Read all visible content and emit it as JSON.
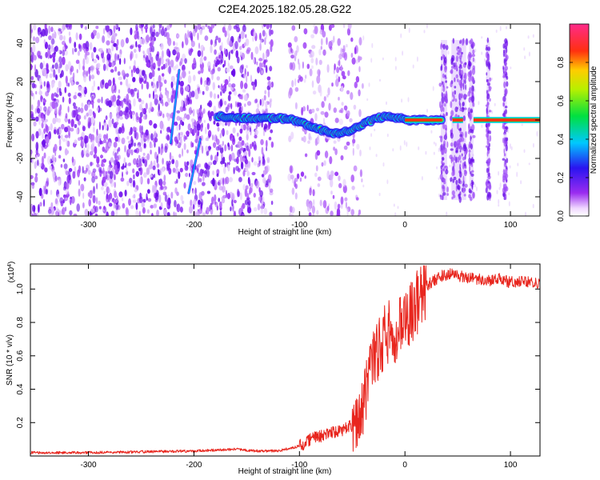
{
  "title": "C2E4.2025.182.05.28.G22",
  "colors": {
    "snr_line": "#e8261e",
    "axis": "#000000",
    "background": "#ffffff"
  },
  "chart_data": [
    {
      "type": "heatmap",
      "title": "C2E4.2025.182.05.28.G22",
      "xlabel": "Height of straight line (km)",
      "ylabel": "Frequency (Hz)",
      "xlim": [
        -355,
        128
      ],
      "ylim": [
        -50,
        50
      ],
      "xticks": [
        {
          "value": -300,
          "label": "-300"
        },
        {
          "value": -200,
          "label": "-200"
        },
        {
          "value": -100,
          "label": "-100"
        },
        {
          "value": 0,
          "label": "0"
        },
        {
          "value": 100,
          "label": "100"
        }
      ],
      "yticks": [
        {
          "value": 40,
          "label": "40"
        },
        {
          "value": 20,
          "label": "20"
        },
        {
          "value": 0,
          "label": "0"
        },
        {
          "value": -20,
          "label": "-20"
        },
        {
          "value": -40,
          "label": "-40"
        }
      ],
      "colorbar": {
        "label": "Normalized spectral amplitude",
        "range": [
          0,
          1
        ],
        "ticks": [
          {
            "value": 0.0,
            "label": "0.0"
          },
          {
            "value": 0.2,
            "label": "0.2"
          },
          {
            "value": 0.4,
            "label": "0.4"
          },
          {
            "value": 0.6,
            "label": "0.6"
          },
          {
            "value": 0.8,
            "label": "0.8"
          }
        ],
        "colormap": "rainbow: white, violet, blue, cyan, green, yellow, orange, red, pink"
      },
      "ridge": [
        {
          "x": -178,
          "y": 2
        },
        {
          "x": -160,
          "y": 1
        },
        {
          "x": -140,
          "y": 1
        },
        {
          "x": -120,
          "y": 1
        },
        {
          "x": -105,
          "y": 0
        },
        {
          "x": -95,
          "y": -2
        },
        {
          "x": -85,
          "y": -4
        },
        {
          "x": -75,
          "y": -6
        },
        {
          "x": -65,
          "y": -7
        },
        {
          "x": -55,
          "y": -6
        },
        {
          "x": -45,
          "y": -4
        },
        {
          "x": -35,
          "y": -1
        },
        {
          "x": -25,
          "y": 1
        },
        {
          "x": -15,
          "y": 2
        },
        {
          "x": -5,
          "y": 1
        },
        {
          "x": 0,
          "y": 0
        },
        {
          "x": 35,
          "y": 0
        }
      ],
      "ridge_segments": [
        [
          0,
          35
        ],
        [
          45,
          55
        ],
        [
          65,
          128
        ]
      ],
      "streaks": [
        {
          "x0": -222,
          "y0": -12,
          "x1": -214,
          "y1": 26
        },
        {
          "x0": -205,
          "y0": -38,
          "x1": -194,
          "y1": -10
        }
      ],
      "noise_regions": [
        [
          -355,
          -125
        ],
        [
          -110,
          -40
        ]
      ],
      "bursts": [
        {
          "x": 37,
          "halfwidth": 3
        },
        {
          "x": 48,
          "halfwidth": 4
        },
        {
          "x": 55,
          "halfwidth": 3
        },
        {
          "x": 63,
          "halfwidth": 2
        },
        {
          "x": 79,
          "halfwidth": 1.5
        },
        {
          "x": 95,
          "halfwidth": 1.5
        }
      ]
    },
    {
      "type": "line",
      "title": "",
      "xlabel": "Height of straight line (km)",
      "ylabel": "SNR (10 * v/v)",
      "y_multiplier": "(x10",
      "y_multiplier_exp": "4",
      "xlim": [
        -355,
        128
      ],
      "ylim": [
        0,
        1.15
      ],
      "xticks": [
        {
          "value": -300,
          "label": "-300"
        },
        {
          "value": -200,
          "label": "-200"
        },
        {
          "value": -100,
          "label": "-100"
        },
        {
          "value": 0,
          "label": "0"
        },
        {
          "value": 100,
          "label": "100"
        }
      ],
      "yticks": [
        {
          "value": 0.2,
          "label": "0.2"
        },
        {
          "value": 0.4,
          "label": "0.4"
        },
        {
          "value": 0.6,
          "label": "0.6"
        },
        {
          "value": 0.8,
          "label": "0.8"
        },
        {
          "value": 1.0,
          "label": "1.0"
        }
      ],
      "series": [
        {
          "x": [
            -355,
            -300,
            -250,
            -200,
            -160,
            -140,
            -120,
            -100,
            -90,
            -80,
            -70,
            -60,
            -50,
            -45,
            -40,
            -35,
            -30,
            -25,
            -20,
            -15,
            -10,
            -5,
            0,
            5,
            10,
            15,
            20,
            25,
            30,
            35,
            40,
            45,
            50,
            60,
            70,
            80,
            90,
            100,
            110,
            120,
            128
          ],
          "y": [
            0.02,
            0.02,
            0.025,
            0.03,
            0.04,
            0.03,
            0.03,
            0.06,
            0.1,
            0.12,
            0.14,
            0.15,
            0.18,
            0.22,
            0.3,
            0.45,
            0.6,
            0.66,
            0.7,
            0.74,
            0.7,
            0.75,
            0.8,
            0.85,
            0.9,
            0.95,
            1.02,
            1.04,
            1.06,
            1.08,
            1.08,
            1.1,
            1.08,
            1.07,
            1.06,
            1.05,
            1.06,
            1.04,
            1.05,
            1.04,
            1.03
          ]
        }
      ]
    }
  ]
}
